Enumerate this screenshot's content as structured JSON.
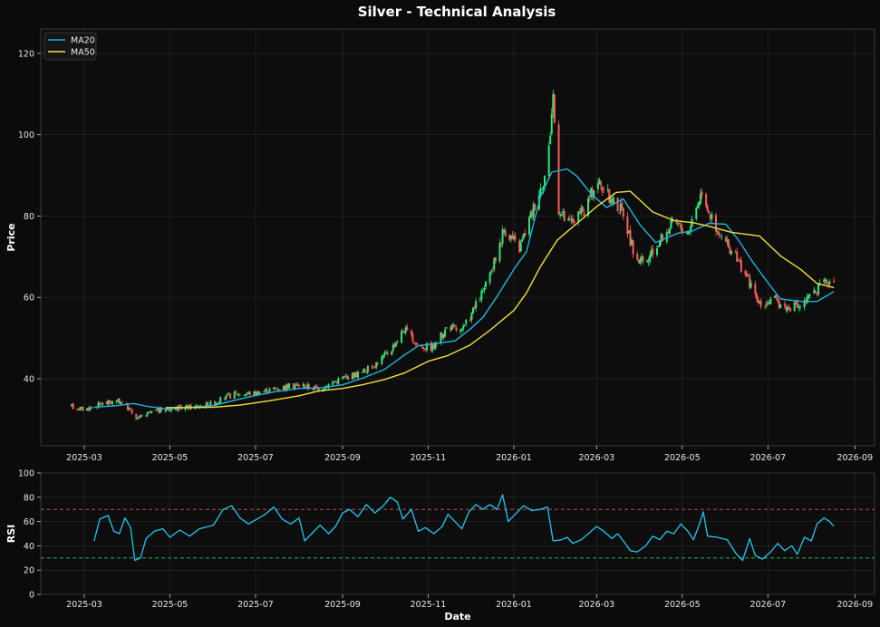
{
  "chart_data": [
    {
      "type": "candlestick",
      "title": "Silver - Technical Analysis",
      "xlabel": "",
      "ylabel": "Price",
      "x_ticks": [
        "2025-03",
        "2025-05",
        "2025-07",
        "2025-09",
        "2025-11",
        "2026-01",
        "2026-03",
        "2026-05",
        "2026-07",
        "2026-09"
      ],
      "y_ticks": [
        40,
        60,
        80,
        100,
        120
      ],
      "xlim": [
        "2025-01-29",
        "2026-09-15"
      ],
      "ylim": [
        23.5,
        126
      ],
      "grid": true,
      "legend_position": "top-left",
      "colors": {
        "up": "#2ee87a",
        "down": "#ff5a5a",
        "ma20": "#1fb4e0",
        "ma50": "#f0e040"
      },
      "series": [
        {
          "name": "MA20",
          "points": [
            [
              "2025-03-08",
              33.0
            ],
            [
              "2025-03-25",
              33.4
            ],
            [
              "2025-04-05",
              33.9
            ],
            [
              "2025-04-15",
              33.2
            ],
            [
              "2025-04-28",
              32.6
            ],
            [
              "2025-05-15",
              32.9
            ],
            [
              "2025-06-01",
              33.4
            ],
            [
              "2025-06-15",
              34.6
            ],
            [
              "2025-07-01",
              35.9
            ],
            [
              "2025-07-15",
              36.8
            ],
            [
              "2025-08-01",
              37.6
            ],
            [
              "2025-08-15",
              37.7
            ],
            [
              "2025-09-01",
              38.5
            ],
            [
              "2025-09-15",
              40.1
            ],
            [
              "2025-10-01",
              42.3
            ],
            [
              "2025-10-15",
              45.8
            ],
            [
              "2025-10-25",
              48.1
            ],
            [
              "2025-11-05",
              48.6
            ],
            [
              "2025-11-20",
              49.3
            ],
            [
              "2025-12-01",
              52.2
            ],
            [
              "2025-12-10",
              55.1
            ],
            [
              "2025-12-20",
              60.2
            ],
            [
              "2026-01-01",
              66.9
            ],
            [
              "2026-01-10",
              71.2
            ],
            [
              "2026-01-20",
              84.8
            ],
            [
              "2026-01-28",
              90.8
            ],
            [
              "2026-02-08",
              91.6
            ],
            [
              "2026-02-15",
              89.8
            ],
            [
              "2026-02-25",
              85.5
            ],
            [
              "2026-03-08",
              82.1
            ],
            [
              "2026-03-20",
              84.2
            ],
            [
              "2026-04-01",
              77.8
            ],
            [
              "2026-04-12",
              73.5
            ],
            [
              "2026-04-28",
              75.8
            ],
            [
              "2026-05-08",
              76.3
            ],
            [
              "2026-05-20",
              78.2
            ],
            [
              "2026-06-01",
              78.0
            ],
            [
              "2026-06-10",
              74.1
            ],
            [
              "2026-06-20",
              68.8
            ],
            [
              "2026-07-01",
              63.6
            ],
            [
              "2026-07-10",
              59.6
            ],
            [
              "2026-07-25",
              59.0
            ],
            [
              "2026-08-05",
              59.0
            ],
            [
              "2026-08-17",
              61.4
            ]
          ]
        },
        {
          "name": "MA50",
          "points": [
            [
              "2025-04-28",
              32.9
            ],
            [
              "2025-05-15",
              32.9
            ],
            [
              "2025-06-01",
              33.0
            ],
            [
              "2025-06-20",
              33.5
            ],
            [
              "2025-07-10",
              34.5
            ],
            [
              "2025-08-01",
              35.8
            ],
            [
              "2025-08-15",
              37.0
            ],
            [
              "2025-09-01",
              37.6
            ],
            [
              "2025-09-15",
              38.5
            ],
            [
              "2025-10-01",
              39.8
            ],
            [
              "2025-10-15",
              41.4
            ],
            [
              "2025-11-01",
              44.3
            ],
            [
              "2025-11-15",
              45.7
            ],
            [
              "2025-12-01",
              48.3
            ],
            [
              "2025-12-15",
              51.9
            ],
            [
              "2026-01-01",
              56.8
            ],
            [
              "2026-01-10",
              61.1
            ],
            [
              "2026-01-20",
              67.6
            ],
            [
              "2026-02-01",
              74.1
            ],
            [
              "2026-02-15",
              78.2
            ],
            [
              "2026-03-01",
              82.3
            ],
            [
              "2026-03-15",
              85.8
            ],
            [
              "2026-03-25",
              86.1
            ],
            [
              "2026-04-10",
              81.0
            ],
            [
              "2026-04-25",
              78.9
            ],
            [
              "2026-05-08",
              78.4
            ],
            [
              "2026-05-20",
              77.5
            ],
            [
              "2026-06-05",
              76.0
            ],
            [
              "2026-06-25",
              75.1
            ],
            [
              "2026-07-10",
              70.2
            ],
            [
              "2026-07-25",
              66.7
            ],
            [
              "2026-08-05",
              63.4
            ],
            [
              "2026-08-17",
              62.4
            ]
          ]
        }
      ],
      "price_anchors": [
        [
          "2025-02-20",
          33.2
        ],
        [
          "2025-03-01",
          32.4
        ],
        [
          "2025-03-15",
          34.0
        ],
        [
          "2025-03-28",
          34.4
        ],
        [
          "2025-04-08",
          30.2
        ],
        [
          "2025-04-20",
          32.0
        ],
        [
          "2025-05-01",
          32.6
        ],
        [
          "2025-05-20",
          33.2
        ],
        [
          "2025-06-01",
          34.0
        ],
        [
          "2025-06-15",
          36.2
        ],
        [
          "2025-07-01",
          36.5
        ],
        [
          "2025-07-15",
          37.6
        ],
        [
          "2025-08-01",
          38.5
        ],
        [
          "2025-08-15",
          37.5
        ],
        [
          "2025-09-01",
          40.2
        ],
        [
          "2025-09-15",
          41.5
        ],
        [
          "2025-09-25",
          43.8
        ],
        [
          "2025-10-05",
          47.0
        ],
        [
          "2025-10-15",
          52.2
        ],
        [
          "2025-10-25",
          48.0
        ],
        [
          "2025-11-05",
          47.8
        ],
        [
          "2025-11-15",
          53.0
        ],
        [
          "2025-11-25",
          51.5
        ],
        [
          "2025-12-05",
          58.0
        ],
        [
          "2025-12-15",
          65.0
        ],
        [
          "2025-12-25",
          77.0
        ],
        [
          "2026-01-05",
          72.0
        ],
        [
          "2026-01-15",
          82.0
        ],
        [
          "2026-01-25",
          92.0
        ],
        [
          "2026-01-29",
          110.0
        ],
        [
          "2026-02-02",
          82.0
        ],
        [
          "2026-02-08",
          78.0
        ],
        [
          "2026-02-20",
          81.0
        ],
        [
          "2026-03-01",
          89.0
        ],
        [
          "2026-03-10",
          84.5
        ],
        [
          "2026-03-20",
          81.0
        ],
        [
          "2026-03-28",
          70.0
        ],
        [
          "2026-04-05",
          68.0
        ],
        [
          "2026-04-15",
          74.0
        ],
        [
          "2026-04-25",
          78.5
        ],
        [
          "2026-05-05",
          76.0
        ],
        [
          "2026-05-15",
          86.5
        ],
        [
          "2026-05-25",
          76.0
        ],
        [
          "2026-06-05",
          71.5
        ],
        [
          "2026-06-15",
          66.0
        ],
        [
          "2026-06-25",
          58.0
        ],
        [
          "2026-07-05",
          59.5
        ],
        [
          "2026-07-15",
          57.5
        ],
        [
          "2026-07-25",
          58.0
        ],
        [
          "2026-08-05",
          62.0
        ],
        [
          "2026-08-17",
          65.0
        ]
      ]
    },
    {
      "type": "line",
      "title": "",
      "xlabel": "Date",
      "ylabel": "RSI",
      "x_ticks": [
        "2025-03",
        "2025-05",
        "2025-07",
        "2025-09",
        "2025-11",
        "2026-01",
        "2026-03",
        "2026-05",
        "2026-07",
        "2026-09"
      ],
      "y_ticks": [
        0,
        20,
        40,
        60,
        80,
        100
      ],
      "xlim": [
        "2025-01-29",
        "2026-09-15"
      ],
      "ylim": [
        0,
        100
      ],
      "grid": true,
      "reference_lines": [
        {
          "value": 70,
          "color": "#e05555",
          "style": "dashed"
        },
        {
          "value": 30,
          "color": "#22cc77",
          "style": "dashed"
        }
      ],
      "series": [
        {
          "name": "",
          "color": "#1fc8f0",
          "points": [
            [
              "2025-03-08",
              44
            ],
            [
              "2025-03-12",
              62
            ],
            [
              "2025-03-18",
              65
            ],
            [
              "2025-03-22",
              52
            ],
            [
              "2025-03-26",
              50
            ],
            [
              "2025-03-30",
              63
            ],
            [
              "2025-04-03",
              55
            ],
            [
              "2025-04-06",
              28
            ],
            [
              "2025-04-10",
              30
            ],
            [
              "2025-04-14",
              46
            ],
            [
              "2025-04-20",
              52
            ],
            [
              "2025-04-26",
              54
            ],
            [
              "2025-05-01",
              47
            ],
            [
              "2025-05-08",
              53
            ],
            [
              "2025-05-15",
              48
            ],
            [
              "2025-05-22",
              54
            ],
            [
              "2025-06-01",
              57
            ],
            [
              "2025-06-08",
              70
            ],
            [
              "2025-06-14",
              73
            ],
            [
              "2025-06-20",
              63
            ],
            [
              "2025-06-26",
              58
            ],
            [
              "2025-07-02",
              62
            ],
            [
              "2025-07-08",
              66
            ],
            [
              "2025-07-14",
              72
            ],
            [
              "2025-07-20",
              62
            ],
            [
              "2025-07-26",
              58
            ],
            [
              "2025-08-01",
              63
            ],
            [
              "2025-08-05",
              44
            ],
            [
              "2025-08-10",
              50
            ],
            [
              "2025-08-16",
              57
            ],
            [
              "2025-08-22",
              50
            ],
            [
              "2025-08-27",
              56
            ],
            [
              "2025-09-01",
              67
            ],
            [
              "2025-09-06",
              70
            ],
            [
              "2025-09-12",
              64
            ],
            [
              "2025-09-18",
              74
            ],
            [
              "2025-09-24",
              67
            ],
            [
              "2025-09-30",
              73
            ],
            [
              "2025-10-05",
              80
            ],
            [
              "2025-10-10",
              76
            ],
            [
              "2025-10-14",
              62
            ],
            [
              "2025-10-20",
              70
            ],
            [
              "2025-10-25",
              52
            ],
            [
              "2025-10-30",
              55
            ],
            [
              "2025-11-05",
              50
            ],
            [
              "2025-11-11",
              56
            ],
            [
              "2025-11-15",
              66
            ],
            [
              "2025-11-20",
              60
            ],
            [
              "2025-11-25",
              54
            ],
            [
              "2025-11-30",
              68
            ],
            [
              "2025-12-05",
              74
            ],
            [
              "2025-12-10",
              70
            ],
            [
              "2025-12-15",
              74
            ],
            [
              "2025-12-20",
              70
            ],
            [
              "2025-12-24",
              82
            ],
            [
              "2025-12-28",
              60
            ],
            [
              "2026-01-02",
              66
            ],
            [
              "2026-01-08",
              73
            ],
            [
              "2026-01-14",
              69
            ],
            [
              "2026-01-20",
              70
            ],
            [
              "2026-01-25",
              72
            ],
            [
              "2026-01-29",
              44
            ],
            [
              "2026-02-04",
              45
            ],
            [
              "2026-02-08",
              47
            ],
            [
              "2026-02-12",
              42
            ],
            [
              "2026-02-18",
              45
            ],
            [
              "2026-02-24",
              51
            ],
            [
              "2026-03-01",
              56
            ],
            [
              "2026-03-06",
              52
            ],
            [
              "2026-03-12",
              46
            ],
            [
              "2026-03-16",
              50
            ],
            [
              "2026-03-20",
              44
            ],
            [
              "2026-03-25",
              36
            ],
            [
              "2026-03-30",
              35
            ],
            [
              "2026-04-05",
              40
            ],
            [
              "2026-04-10",
              48
            ],
            [
              "2026-04-15",
              45
            ],
            [
              "2026-04-20",
              52
            ],
            [
              "2026-04-25",
              50
            ],
            [
              "2026-04-30",
              58
            ],
            [
              "2026-05-05",
              52
            ],
            [
              "2026-05-09",
              45
            ],
            [
              "2026-05-13",
              57
            ],
            [
              "2026-05-16",
              68
            ],
            [
              "2026-05-19",
              48
            ],
            [
              "2026-05-26",
              47
            ],
            [
              "2026-06-02",
              45
            ],
            [
              "2026-06-08",
              34
            ],
            [
              "2026-06-13",
              28
            ],
            [
              "2026-06-18",
              46
            ],
            [
              "2026-06-22",
              32
            ],
            [
              "2026-06-27",
              29
            ],
            [
              "2026-07-03",
              35
            ],
            [
              "2026-07-08",
              42
            ],
            [
              "2026-07-13",
              36
            ],
            [
              "2026-07-18",
              40
            ],
            [
              "2026-07-22",
              33
            ],
            [
              "2026-07-27",
              47
            ],
            [
              "2026-08-01",
              44
            ],
            [
              "2026-08-05",
              58
            ],
            [
              "2026-08-10",
              63
            ],
            [
              "2026-08-14",
              60
            ],
            [
              "2026-08-17",
              56
            ]
          ]
        }
      ]
    }
  ]
}
